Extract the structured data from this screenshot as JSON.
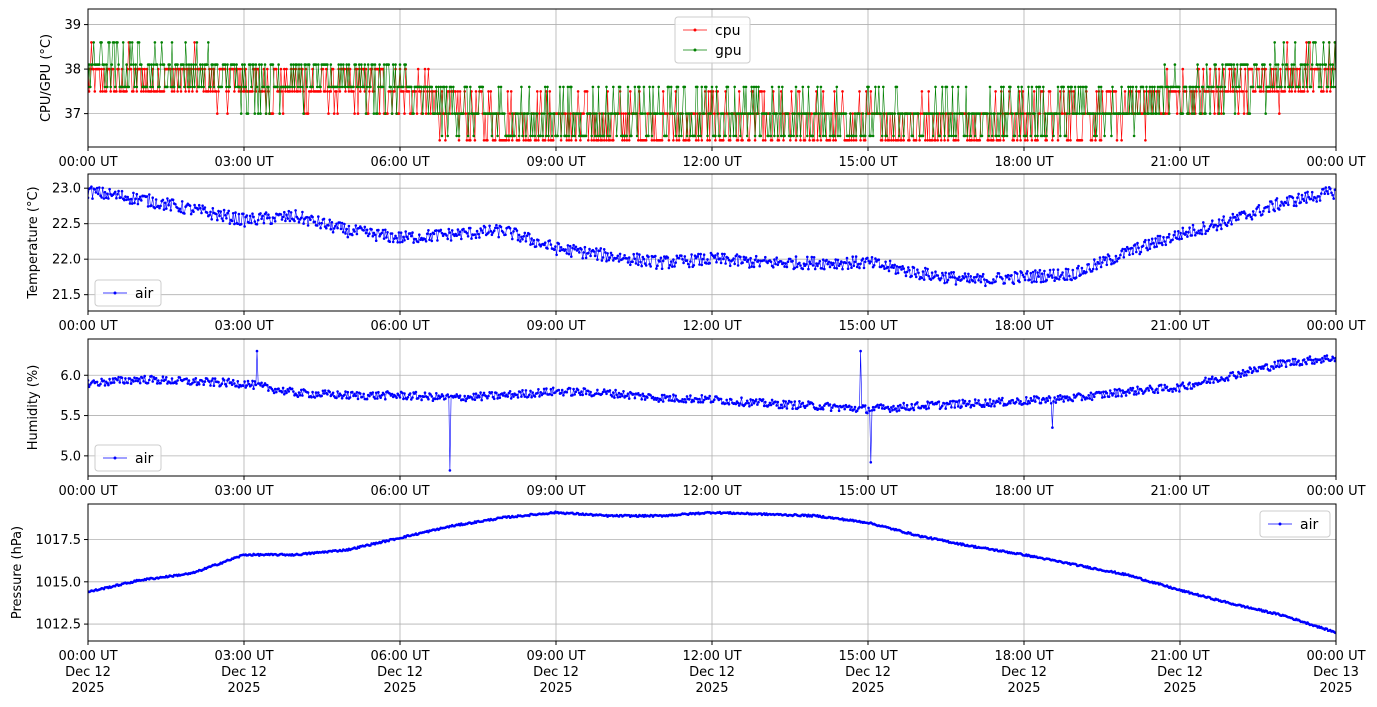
{
  "chart_data": [
    {
      "type": "line",
      "ylabel": "CPU/GPU (°C)",
      "ylim": [
        36.25,
        39.35
      ],
      "yticks": [
        37,
        38,
        39
      ],
      "ytick_labels": [
        "37",
        "38",
        "39"
      ],
      "xlim": [
        0,
        24
      ],
      "xticks": [
        0,
        3,
        6,
        9,
        12,
        15,
        18,
        21,
        24
      ],
      "xtick_labels": [
        "00:00 UT",
        "03:00 UT",
        "06:00 UT",
        "09:00 UT",
        "12:00 UT",
        "15:00 UT",
        "18:00 UT",
        "21:00 UT",
        "00:00 UT"
      ],
      "grid": true,
      "legend_position": "upper center",
      "series": [
        {
          "name": "cpu",
          "color": "#ff0000",
          "quantized": true,
          "x": [
            0,
            1,
            2,
            3,
            4,
            5,
            6,
            7,
            8,
            9,
            10,
            11,
            12,
            13,
            14,
            15,
            16,
            17,
            18,
            19,
            20,
            21,
            22,
            23,
            24
          ],
          "y": [
            37.8,
            37.8,
            37.8,
            37.7,
            37.6,
            37.6,
            37.5,
            37.1,
            36.9,
            36.8,
            36.8,
            36.8,
            36.9,
            36.8,
            36.8,
            36.8,
            36.8,
            36.8,
            36.9,
            37.0,
            37.1,
            37.3,
            37.6,
            37.8,
            37.9
          ]
        },
        {
          "name": "gpu",
          "color": "#008000",
          "quantized": true,
          "x": [
            0,
            1,
            2,
            3,
            4,
            5,
            6,
            7,
            8,
            9,
            10,
            11,
            12,
            13,
            14,
            15,
            16,
            17,
            18,
            19,
            20,
            21,
            22,
            23,
            24
          ],
          "y": [
            38.1,
            38.0,
            37.9,
            37.8,
            37.8,
            37.8,
            37.6,
            37.1,
            36.9,
            36.9,
            36.9,
            37.0,
            37.0,
            36.9,
            36.9,
            36.9,
            36.9,
            36.9,
            37.0,
            37.1,
            37.2,
            37.4,
            37.7,
            37.9,
            38.0
          ]
        }
      ]
    },
    {
      "type": "line",
      "ylabel": "Temperature (°C)",
      "ylim": [
        21.27,
        23.2
      ],
      "yticks": [
        21.5,
        22.0,
        22.5,
        23.0
      ],
      "ytick_labels": [
        "21.5",
        "22.0",
        "22.5",
        "23.0"
      ],
      "xlim": [
        0,
        24
      ],
      "xticks": [
        0,
        3,
        6,
        9,
        12,
        15,
        18,
        21,
        24
      ],
      "xtick_labels": [
        "00:00 UT",
        "03:00 UT",
        "06:00 UT",
        "09:00 UT",
        "12:00 UT",
        "15:00 UT",
        "18:00 UT",
        "21:00 UT",
        "00:00 UT"
      ],
      "grid": true,
      "legend_position": "lower left",
      "series": [
        {
          "name": "air",
          "color": "#0000ff",
          "noise": 0.09,
          "x": [
            0,
            1,
            2,
            3,
            4,
            5,
            6,
            7,
            8,
            9,
            10,
            11,
            12,
            13,
            14,
            15,
            16,
            17,
            18,
            19,
            20,
            21,
            22,
            23,
            24
          ],
          "y": [
            22.95,
            22.85,
            22.7,
            22.55,
            22.6,
            22.4,
            22.3,
            22.35,
            22.4,
            22.15,
            22.05,
            21.95,
            22.0,
            21.95,
            21.95,
            21.95,
            21.8,
            21.7,
            21.75,
            21.8,
            22.1,
            22.35,
            22.55,
            22.8,
            22.95
          ]
        }
      ]
    },
    {
      "type": "line",
      "ylabel": "Humidity (%)",
      "ylim": [
        4.75,
        6.45
      ],
      "yticks": [
        5.0,
        5.5,
        6.0
      ],
      "ytick_labels": [
        "5.0",
        "5.5",
        "6.0"
      ],
      "xlim": [
        0,
        24
      ],
      "xticks": [
        0,
        3,
        6,
        9,
        12,
        15,
        18,
        21,
        24
      ],
      "xtick_labels": [
        "00:00 UT",
        "03:00 UT",
        "06:00 UT",
        "09:00 UT",
        "12:00 UT",
        "15:00 UT",
        "18:00 UT",
        "21:00 UT",
        "00:00 UT"
      ],
      "grid": true,
      "legend_position": "lower left",
      "series": [
        {
          "name": "air",
          "color": "#0000ff",
          "noise": 0.05,
          "x": [
            0,
            1,
            2,
            3,
            4,
            5,
            6,
            7,
            8,
            9,
            10,
            11,
            12,
            13,
            14,
            15,
            16,
            17,
            18,
            19,
            20,
            21,
            22,
            23,
            24
          ],
          "y": [
            5.9,
            5.95,
            5.92,
            5.9,
            5.78,
            5.75,
            5.75,
            5.72,
            5.75,
            5.8,
            5.78,
            5.72,
            5.7,
            5.65,
            5.62,
            5.58,
            5.62,
            5.65,
            5.68,
            5.72,
            5.8,
            5.85,
            6.0,
            6.15,
            6.22
          ]
        }
      ],
      "spikes": [
        {
          "x": 6.95,
          "y": 4.82
        },
        {
          "x": 14.85,
          "y": 6.3
        },
        {
          "x": 15.05,
          "y": 4.92
        },
        {
          "x": 3.25,
          "y": 6.3
        },
        {
          "x": 18.55,
          "y": 5.35
        }
      ]
    },
    {
      "type": "line",
      "ylabel": "Pressure (hPa)",
      "ylim": [
        1011.5,
        1019.6
      ],
      "yticks": [
        1012.5,
        1015.0,
        1017.5
      ],
      "ytick_labels": [
        "1012.5",
        "1015.0",
        "1017.5"
      ],
      "xlim": [
        0,
        24
      ],
      "xticks": [
        0,
        3,
        6,
        9,
        12,
        15,
        18,
        21,
        24
      ],
      "xtick_labels": [
        "00:00 UT\nDec 12\n2025",
        "03:00 UT\nDec 12\n2025",
        "06:00 UT\nDec 12\n2025",
        "09:00 UT\nDec 12\n2025",
        "12:00 UT\nDec 12\n2025",
        "15:00 UT\nDec 12\n2025",
        "18:00 UT\nDec 12\n2025",
        "21:00 UT\nDec 12\n2025",
        "00:00 UT\nDec 13\n2025"
      ],
      "grid": true,
      "legend_position": "upper right",
      "series": [
        {
          "name": "air",
          "color": "#0000ff",
          "noise": 0.05,
          "x": [
            0,
            1,
            2,
            3,
            4,
            5,
            6,
            7,
            8,
            9,
            10,
            11,
            12,
            13,
            14,
            15,
            16,
            17,
            18,
            19,
            20,
            21,
            22,
            23,
            24
          ],
          "y": [
            1014.4,
            1015.1,
            1015.5,
            1016.6,
            1016.6,
            1016.9,
            1017.6,
            1018.3,
            1018.8,
            1019.1,
            1018.9,
            1018.9,
            1019.1,
            1019.0,
            1018.9,
            1018.5,
            1017.7,
            1017.1,
            1016.6,
            1016.0,
            1015.4,
            1014.5,
            1013.7,
            1013.0,
            1012.0
          ]
        }
      ]
    }
  ]
}
